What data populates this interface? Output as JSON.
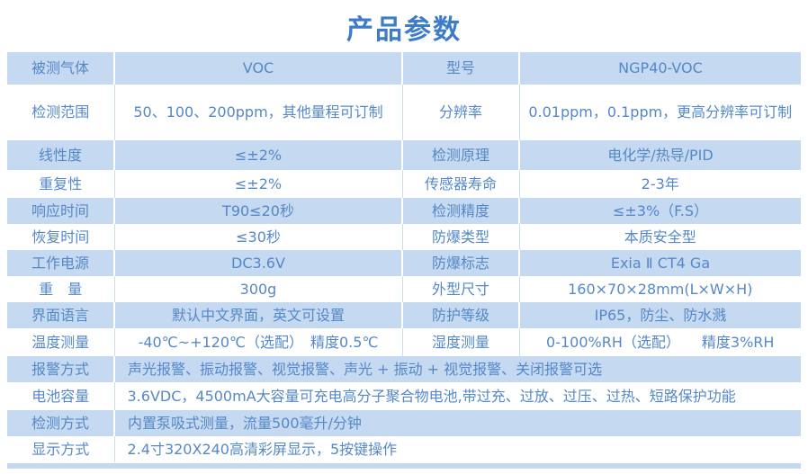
{
  "title": "产品参数",
  "colors": {
    "title_text": "#3e7bc8",
    "cell_text": "#5588c8",
    "row_blue_bg": "#c5d9f1",
    "white_row_divider": "#cbddf0",
    "blue_row_divider": "#ffffff"
  },
  "table": {
    "rows": [
      {
        "label1": "被测气体",
        "value1": "VOC",
        "label2": "型号",
        "value2": "NGP40-VOC"
      },
      {
        "label1": "检测范围",
        "value1": "50、100、200ppm，其他量程可订制",
        "label2": "分辨率",
        "value2": "0.01ppm，0.1ppm，更高分辨率可订制"
      },
      {
        "label1": "线性度",
        "value1": "≤±2%",
        "label2": "检测原理",
        "value2": "电化学/热导/PID"
      },
      {
        "label1": "重复性",
        "value1": "≤±2%",
        "label2": "传感器寿命",
        "value2": "2-3年"
      },
      {
        "label1": "响应时间",
        "value1": "T90≤20秒",
        "label2": "检测精度",
        "value2": "≤±3%（F.S）"
      },
      {
        "label1": "恢复时间",
        "value1": "≤30秒",
        "label2": "防爆类型",
        "value2": "本质安全型"
      },
      {
        "label1": "工作电源",
        "value1": "DC3.6V",
        "label2": "防爆标志",
        "value2": "Exia Ⅱ CT4 Ga"
      },
      {
        "label1": "重　量",
        "value1": "300g",
        "label2": "外型尺寸",
        "value2": "160×70×28mm(L×W×H)"
      },
      {
        "label1": "界面语言",
        "value1": "默认中文界面，英文可设置",
        "label2": "防护等级",
        "value2": "IP65，防尘、防水溅"
      },
      {
        "label1": "温度测量",
        "value1": "-40℃~+120℃（选配）　精度0.5℃",
        "label2": "湿度测量",
        "value2": "0-100%RH（选配）　　精度3%RH"
      },
      {
        "label1": "报警方式",
        "value1": "声光报警、振动报警、视觉报警、声光 + 振动 + 视觉报警、关闭报警可选"
      },
      {
        "label1": "电池容量",
        "value1": "3.6VDC，4500mA大容量可充电高分子聚合物电池,带过充、过放、过压、过热、短路保护功能"
      },
      {
        "label1": "检测方式",
        "value1": "内置泵吸式测量，流量500毫升/分钟"
      },
      {
        "label1": "显示方式",
        "value1": "2.4寸320X240高清彩屏显示，5按键操作"
      }
    ]
  }
}
